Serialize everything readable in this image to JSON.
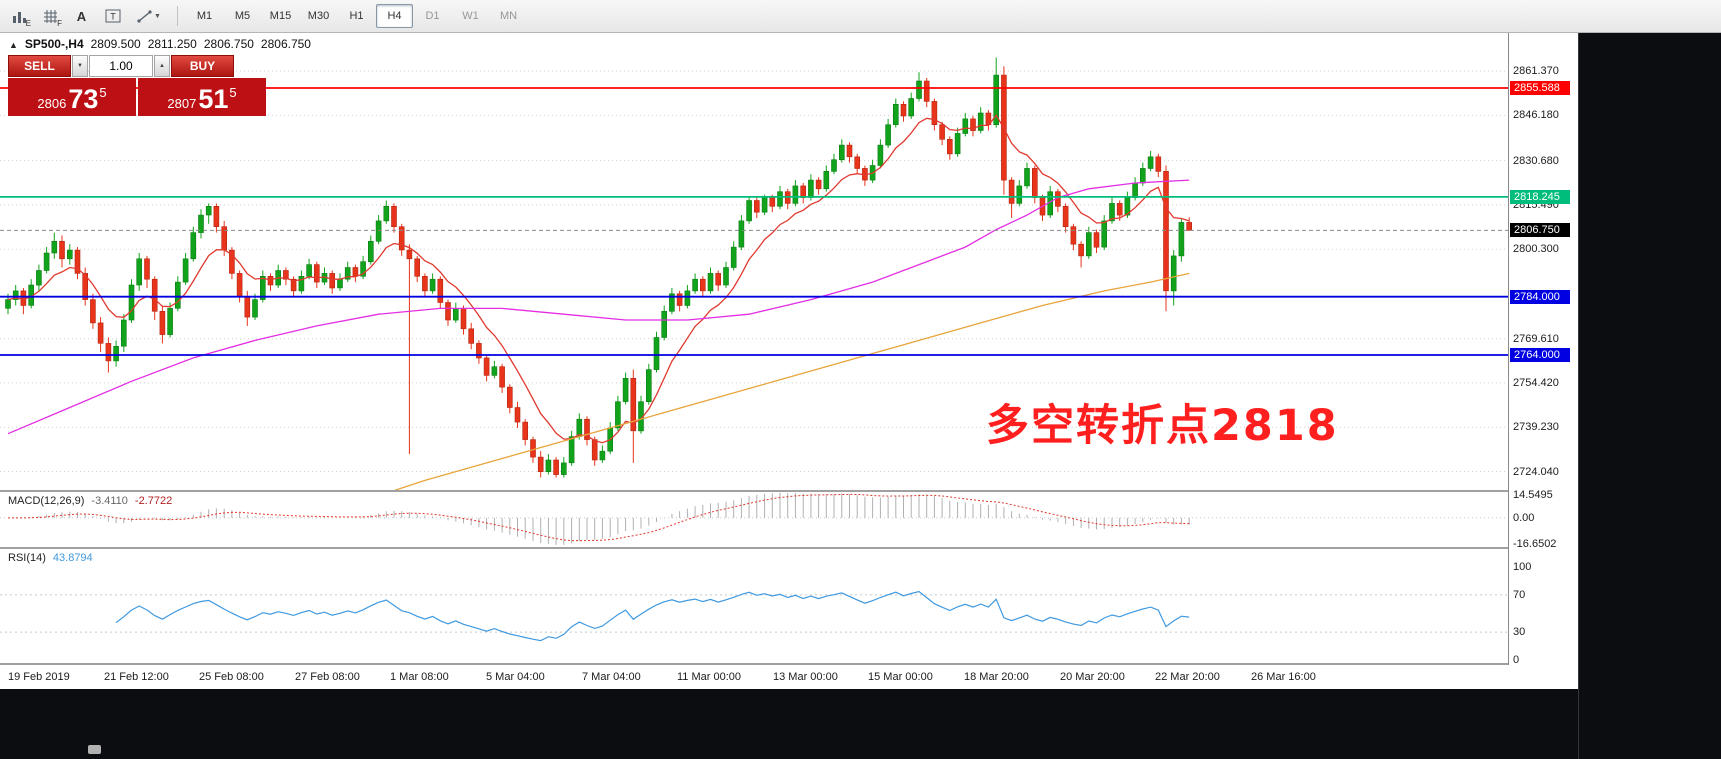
{
  "icons": {
    "symbol_caret": "▲",
    "volume_up": "▲",
    "volume_down": "▼",
    "tool_caret": "▼"
  },
  "toolbar": {
    "icon_badges": {
      "e": "E",
      "f": "F"
    },
    "icon_letters": {
      "a": "A",
      "t": "T"
    },
    "timeframes": [
      {
        "label": "M1"
      },
      {
        "label": "M5"
      },
      {
        "label": "M15"
      },
      {
        "label": "M30"
      },
      {
        "label": "H1"
      },
      {
        "label": "H4",
        "active": true
      },
      {
        "label": "D1",
        "muted": true
      },
      {
        "label": "W1",
        "muted": true
      },
      {
        "label": "MN",
        "muted": true
      }
    ]
  },
  "chart": {
    "symbol_tf": "SP500-,H4",
    "ohlc": {
      "open": "2809.500",
      "high": "2811.250",
      "low": "2806.750",
      "close": "2806.750"
    },
    "quote_panel": {
      "sell_label": "SELL",
      "buy_label": "BUY",
      "volume": "1.00",
      "bid": {
        "prefix": "2806",
        "big": "73",
        "sup": "5"
      },
      "ask": {
        "prefix": "2807",
        "big": "51",
        "sup": "5"
      }
    },
    "annotation": {
      "text": "多空转折点2818",
      "color": "#ff1f1f"
    }
  },
  "chart_data": {
    "type": "candlestick",
    "symbol": "SP500-",
    "timeframe": "H4",
    "ylim": [
      2717.7,
      2874.45
    ],
    "y_ticks": [
      2861.37,
      2846.18,
      2830.68,
      2815.49,
      2800.3,
      2769.61,
      2754.42,
      2739.23,
      2724.04
    ],
    "x_labels": [
      "19 Feb 2019",
      "21 Feb 12:00",
      "25 Feb 08:00",
      "27 Feb 08:00",
      "1 Mar 08:00",
      "5 Mar 04:00",
      "7 Mar 04:00",
      "11 Mar 00:00",
      "13 Mar 00:00",
      "15 Mar 00:00",
      "18 Mar 20:00",
      "20 Mar 20:00",
      "22 Mar 20:00",
      "26 Mar 16:00"
    ],
    "levels": [
      {
        "price": 2855.588,
        "label": "2855.588",
        "color": "#ff0000"
      },
      {
        "price": 2818.245,
        "label": "2818.245",
        "color": "#00bd7c"
      },
      {
        "price": 2784.0,
        "label": "2784.000",
        "color": "#0000e0"
      },
      {
        "price": 2764.0,
        "label": "2764.000",
        "color": "#0000e0"
      }
    ],
    "current_price": {
      "price": 2806.75,
      "label": "2806.750",
      "color": "#000000"
    },
    "colors": {
      "up": "#10a31b",
      "down": "#e8341b",
      "up_border": "#0b7d14",
      "down_border": "#b3260f",
      "grid": "#cfcfcf"
    },
    "candles": [
      [
        2780,
        2785,
        2778,
        2783
      ],
      [
        2783,
        2788,
        2781,
        2786
      ],
      [
        2786,
        2787,
        2778,
        2781
      ],
      [
        2781,
        2790,
        2780,
        2788
      ],
      [
        2788,
        2795,
        2786,
        2793
      ],
      [
        2793,
        2801,
        2792,
        2799
      ],
      [
        2799,
        2806,
        2797,
        2803
      ],
      [
        2803,
        2805,
        2794,
        2797
      ],
      [
        2797,
        2802,
        2795,
        2800
      ],
      [
        2800,
        2801,
        2790,
        2792
      ],
      [
        2792,
        2794,
        2781,
        2783
      ],
      [
        2783,
        2785,
        2773,
        2775
      ],
      [
        2775,
        2777,
        2765,
        2768
      ],
      [
        2768,
        2770,
        2758,
        2762
      ],
      [
        2762,
        2769,
        2760,
        2767
      ],
      [
        2767,
        2778,
        2765,
        2776
      ],
      [
        2776,
        2790,
        2775,
        2788
      ],
      [
        2788,
        2799,
        2786,
        2797
      ],
      [
        2797,
        2798,
        2787,
        2790
      ],
      [
        2790,
        2791,
        2776,
        2779
      ],
      [
        2779,
        2781,
        2768,
        2771
      ],
      [
        2771,
        2782,
        2770,
        2780
      ],
      [
        2780,
        2791,
        2779,
        2789
      ],
      [
        2789,
        2799,
        2788,
        2797
      ],
      [
        2797,
        2808,
        2796,
        2806
      ],
      [
        2806,
        2814,
        2804,
        2812
      ],
      [
        2812,
        2816,
        2809,
        2815
      ],
      [
        2815,
        2816,
        2806,
        2808
      ],
      [
        2808,
        2810,
        2798,
        2800
      ],
      [
        2800,
        2801,
        2790,
        2792
      ],
      [
        2792,
        2793,
        2782,
        2784
      ],
      [
        2784,
        2786,
        2774,
        2777
      ],
      [
        2777,
        2785,
        2776,
        2783
      ],
      [
        2783,
        2793,
        2782,
        2791
      ],
      [
        2791,
        2792,
        2786,
        2788
      ],
      [
        2788,
        2795,
        2787,
        2793
      ],
      [
        2793,
        2794,
        2788,
        2790
      ],
      [
        2790,
        2791,
        2784,
        2786
      ],
      [
        2786,
        2793,
        2785,
        2791
      ],
      [
        2791,
        2797,
        2790,
        2795
      ],
      [
        2795,
        2796,
        2787,
        2789
      ],
      [
        2789,
        2794,
        2788,
        2792
      ],
      [
        2792,
        2793,
        2785,
        2787
      ],
      [
        2787,
        2792,
        2786,
        2790
      ],
      [
        2790,
        2796,
        2789,
        2794
      ],
      [
        2794,
        2795,
        2789,
        2791
      ],
      [
        2791,
        2798,
        2790,
        2796
      ],
      [
        2796,
        2805,
        2795,
        2803
      ],
      [
        2803,
        2812,
        2802,
        2810
      ],
      [
        2810,
        2817,
        2809,
        2815
      ],
      [
        2815,
        2816,
        2806,
        2808
      ],
      [
        2808,
        2809,
        2798,
        2800
      ],
      [
        2800,
        2802,
        2730,
        2797
      ],
      [
        2797,
        2798,
        2789,
        2791
      ],
      [
        2791,
        2792,
        2784,
        2786
      ],
      [
        2786,
        2792,
        2785,
        2790
      ],
      [
        2790,
        2791,
        2780,
        2782
      ],
      [
        2782,
        2783,
        2774,
        2776
      ],
      [
        2776,
        2782,
        2775,
        2780
      ],
      [
        2780,
        2781,
        2771,
        2773
      ],
      [
        2773,
        2775,
        2766,
        2768
      ],
      [
        2768,
        2769,
        2761,
        2763
      ],
      [
        2763,
        2764,
        2755,
        2757
      ],
      [
        2757,
        2762,
        2756,
        2760
      ],
      [
        2760,
        2761,
        2751,
        2753
      ],
      [
        2753,
        2754,
        2744,
        2746
      ],
      [
        2746,
        2748,
        2739,
        2741
      ],
      [
        2741,
        2742,
        2733,
        2735
      ],
      [
        2735,
        2736,
        2727,
        2729
      ],
      [
        2729,
        2731,
        2722,
        2724
      ],
      [
        2724,
        2730,
        2723,
        2728
      ],
      [
        2728,
        2729,
        2722,
        2723
      ],
      [
        2723,
        2729,
        2722,
        2727
      ],
      [
        2727,
        2738,
        2726,
        2736
      ],
      [
        2736,
        2744,
        2735,
        2742
      ],
      [
        2742,
        2743,
        2733,
        2735
      ],
      [
        2735,
        2736,
        2726,
        2728
      ],
      [
        2728,
        2733,
        2727,
        2731
      ],
      [
        2731,
        2741,
        2730,
        2739
      ],
      [
        2739,
        2750,
        2738,
        2748
      ],
      [
        2748,
        2758,
        2747,
        2756
      ],
      [
        2756,
        2759,
        2727,
        2738
      ],
      [
        2738,
        2750,
        2737,
        2748
      ],
      [
        2748,
        2761,
        2747,
        2759
      ],
      [
        2759,
        2772,
        2758,
        2770
      ],
      [
        2770,
        2781,
        2769,
        2779
      ],
      [
        2779,
        2787,
        2778,
        2785
      ],
      [
        2785,
        2786,
        2779,
        2781
      ],
      [
        2781,
        2788,
        2780,
        2786
      ],
      [
        2786,
        2792,
        2785,
        2790
      ],
      [
        2790,
        2791,
        2784,
        2786
      ],
      [
        2786,
        2794,
        2785,
        2792
      ],
      [
        2792,
        2793,
        2786,
        2788
      ],
      [
        2788,
        2796,
        2787,
        2794
      ],
      [
        2794,
        2803,
        2793,
        2801
      ],
      [
        2801,
        2812,
        2800,
        2810
      ],
      [
        2810,
        2818,
        2809,
        2817
      ],
      [
        2817,
        2818,
        2811,
        2813
      ],
      [
        2813,
        2819,
        2812,
        2818
      ],
      [
        2818,
        2819,
        2813,
        2815
      ],
      [
        2815,
        2822,
        2814,
        2820
      ],
      [
        2820,
        2821,
        2814,
        2816
      ],
      [
        2816,
        2824,
        2815,
        2822
      ],
      [
        2822,
        2823,
        2816,
        2818
      ],
      [
        2818,
        2826,
        2817,
        2824
      ],
      [
        2824,
        2825,
        2819,
        2821
      ],
      [
        2821,
        2829,
        2820,
        2827
      ],
      [
        2827,
        2833,
        2826,
        2831
      ],
      [
        2831,
        2838,
        2830,
        2836
      ],
      [
        2836,
        2837,
        2830,
        2832
      ],
      [
        2832,
        2833,
        2826,
        2828
      ],
      [
        2828,
        2829,
        2822,
        2824
      ],
      [
        2824,
        2831,
        2823,
        2829
      ],
      [
        2829,
        2838,
        2828,
        2836
      ],
      [
        2836,
        2845,
        2835,
        2843
      ],
      [
        2843,
        2852,
        2842,
        2850
      ],
      [
        2850,
        2851,
        2844,
        2846
      ],
      [
        2846,
        2854,
        2845,
        2852
      ],
      [
        2852,
        2861,
        2851,
        2858
      ],
      [
        2858,
        2859,
        2849,
        2851
      ],
      [
        2851,
        2852,
        2841,
        2843
      ],
      [
        2843,
        2844,
        2836,
        2838
      ],
      [
        2838,
        2839,
        2831,
        2833
      ],
      [
        2833,
        2842,
        2832,
        2840
      ],
      [
        2840,
        2847,
        2839,
        2845
      ],
      [
        2845,
        2846,
        2839,
        2841
      ],
      [
        2841,
        2849,
        2840,
        2847
      ],
      [
        2847,
        2848,
        2841,
        2843
      ],
      [
        2843,
        2866,
        2842,
        2860
      ],
      [
        2860,
        2863,
        2819,
        2824
      ],
      [
        2824,
        2825,
        2811,
        2816
      ],
      [
        2816,
        2824,
        2815,
        2822
      ],
      [
        2822,
        2830,
        2821,
        2828
      ],
      [
        2828,
        2829,
        2816,
        2818
      ],
      [
        2818,
        2819,
        2810,
        2812
      ],
      [
        2812,
        2822,
        2811,
        2820
      ],
      [
        2820,
        2821,
        2813,
        2815
      ],
      [
        2815,
        2816,
        2806,
        2808
      ],
      [
        2808,
        2809,
        2800,
        2802
      ],
      [
        2802,
        2803,
        2794,
        2798
      ],
      [
        2798,
        2808,
        2797,
        2806
      ],
      [
        2806,
        2807,
        2799,
        2801
      ],
      [
        2801,
        2812,
        2800,
        2810
      ],
      [
        2810,
        2818,
        2809,
        2816
      ],
      [
        2816,
        2817,
        2810,
        2812
      ],
      [
        2812,
        2820,
        2811,
        2818
      ],
      [
        2818,
        2825,
        2817,
        2823
      ],
      [
        2823,
        2830,
        2822,
        2828
      ],
      [
        2828,
        2834,
        2827,
        2832
      ],
      [
        2832,
        2833,
        2825,
        2827
      ],
      [
        2827,
        2829,
        2779,
        2786
      ],
      [
        2786,
        2800,
        2781,
        2798
      ],
      [
        2798,
        2811,
        2796,
        2809.5
      ],
      [
        2809.5,
        2811.25,
        2806.75,
        2806.75
      ]
    ],
    "ma_lines": [
      {
        "name": "fast",
        "color": "#e0392e",
        "mode": "ema",
        "period": 9
      },
      {
        "name": "mid",
        "color": "#e32ee3",
        "mode": "points",
        "points": [
          [
            0,
            2737
          ],
          [
            8,
            2746
          ],
          [
            16,
            2755
          ],
          [
            24,
            2763
          ],
          [
            32,
            2769
          ],
          [
            40,
            2774
          ],
          [
            48,
            2778
          ],
          [
            56,
            2780
          ],
          [
            64,
            2780
          ],
          [
            72,
            2778
          ],
          [
            80,
            2776
          ],
          [
            88,
            2776
          ],
          [
            96,
            2778
          ],
          [
            104,
            2783
          ],
          [
            112,
            2789
          ],
          [
            118,
            2795
          ],
          [
            124,
            2801
          ],
          [
            128,
            2807
          ],
          [
            132,
            2812
          ],
          [
            136,
            2818
          ],
          [
            140,
            2821
          ],
          [
            146,
            2823
          ],
          [
            153,
            2824
          ]
        ]
      },
      {
        "name": "slow",
        "color": "#e8a43c",
        "mode": "points",
        "points": [
          [
            46,
            2714
          ],
          [
            54,
            2721
          ],
          [
            62,
            2727
          ],
          [
            70,
            2733
          ],
          [
            78,
            2739
          ],
          [
            86,
            2745
          ],
          [
            94,
            2751
          ],
          [
            102,
            2757
          ],
          [
            110,
            2763
          ],
          [
            118,
            2769
          ],
          [
            126,
            2775
          ],
          [
            134,
            2781
          ],
          [
            142,
            2786
          ],
          [
            148,
            2789
          ],
          [
            153,
            2792
          ]
        ]
      }
    ],
    "macd": {
      "label": "MACD(12,26,9)",
      "value_main": "-3.4110",
      "value_signal": "-2.7722",
      "fast": 12,
      "slow": 26,
      "signal": 9,
      "ylim": [
        -18.5,
        16.5
      ],
      "y_ticks": [
        {
          "v": 14.5495,
          "label": "14.5495"
        },
        {
          "v": 0,
          "label": "0.00"
        },
        {
          "v": -16.6502,
          "label": "-16.6502"
        }
      ],
      "hist_color": "#b0b0b0",
      "signal_color": "#e0392e"
    },
    "rsi": {
      "label": "RSI(14)",
      "value": "43.8794",
      "period": 14,
      "color": "#3f99e0",
      "levels": [
        70,
        30
      ],
      "y_ticks": [
        {
          "v": 100,
          "label": "100"
        },
        {
          "v": 70,
          "label": "70"
        },
        {
          "v": 30,
          "label": "30"
        },
        {
          "v": 0,
          "label": "0"
        }
      ]
    }
  }
}
